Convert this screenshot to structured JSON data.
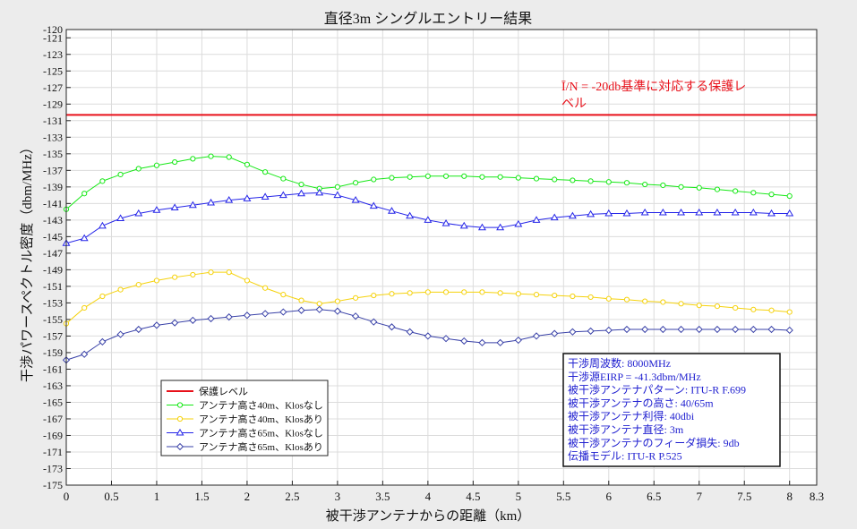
{
  "chart_data": {
    "type": "line",
    "title": "直径3m シングルエントリー結果",
    "xlabel": "被干渉アンテナからの距離（km）",
    "ylabel": "干渉パワースペクトル密度（dbm/MHz）",
    "xlim": [
      0,
      8.3
    ],
    "ylim": [
      -175,
      -120
    ],
    "grid": true,
    "x_ticks": [
      0,
      0.5,
      1,
      1.5,
      2,
      2.5,
      3,
      3.5,
      4,
      4.5,
      5,
      5.5,
      6,
      6.5,
      7,
      7.5,
      8,
      8.3
    ],
    "x_tick_labels": [
      "0",
      "0.5",
      "1",
      "1.5",
      "2",
      "2.5",
      "3",
      "3.5",
      "4",
      "4.5",
      "5",
      "5.5",
      "6",
      "6.5",
      "7",
      "7.5",
      "8",
      "8.3"
    ],
    "y_ticks": [
      -120,
      -121,
      -123,
      -125,
      -127,
      -129,
      -131,
      -133,
      -135,
      -137,
      -139,
      -141,
      -143,
      -145,
      -147,
      -149,
      -151,
      -153,
      -155,
      -157,
      -159,
      -161,
      -163,
      -165,
      -167,
      -169,
      -171,
      -173,
      -175
    ],
    "y_tick_labels": [
      "-120",
      "-121",
      "-123",
      "-125",
      "-127",
      "-129",
      "-131",
      "-133",
      "-135",
      "-137",
      "-139",
      "-141",
      "-143",
      "-145",
      "-147",
      "-149",
      "-151",
      "-153",
      "-155",
      "-157",
      "-159",
      "-161",
      "-163",
      "-165",
      "-167",
      "-169",
      "-171",
      "-173",
      "-175"
    ],
    "x": [
      0,
      0.2,
      0.4,
      0.6,
      0.8,
      1.0,
      1.2,
      1.4,
      1.6,
      1.8,
      2.0,
      2.2,
      2.4,
      2.6,
      2.8,
      3.0,
      3.2,
      3.4,
      3.6,
      3.8,
      4.0,
      4.2,
      4.4,
      4.6,
      4.8,
      5.0,
      5.2,
      5.4,
      5.6,
      5.8,
      6.0,
      6.2,
      6.4,
      6.6,
      6.8,
      7.0,
      7.2,
      7.4,
      7.6,
      7.8,
      8.0
    ],
    "series": [
      {
        "name": "保護レベル",
        "color": "#e8101a",
        "marker": "none",
        "x": [
          0,
          8.3
        ],
        "values": [
          -130.3,
          -130.3
        ]
      },
      {
        "name": "アンテナ高さ40m、Klosなし",
        "color": "#16e816",
        "marker": "circle",
        "values": [
          -141.7,
          -139.8,
          -138.3,
          -137.5,
          -136.8,
          -136.4,
          -136.0,
          -135.6,
          -135.3,
          -135.4,
          -136.3,
          -137.2,
          -138.0,
          -138.7,
          -139.2,
          -139.0,
          -138.5,
          -138.1,
          -137.9,
          -137.8,
          -137.7,
          -137.7,
          -137.7,
          -137.8,
          -137.8,
          -137.9,
          -138.0,
          -138.1,
          -138.2,
          -138.3,
          -138.4,
          -138.5,
          -138.7,
          -138.8,
          -139.0,
          -139.1,
          -139.3,
          -139.5,
          -139.7,
          -139.9,
          -140.1
        ]
      },
      {
        "name": "アンテナ高さ40m、Klosあり",
        "color": "#f5d20d",
        "marker": "circle",
        "values": [
          -155.5,
          -153.6,
          -152.2,
          -151.4,
          -150.8,
          -150.3,
          -149.9,
          -149.6,
          -149.3,
          -149.3,
          -150.3,
          -151.2,
          -152.0,
          -152.7,
          -153.1,
          -152.8,
          -152.4,
          -152.1,
          -151.9,
          -151.8,
          -151.7,
          -151.7,
          -151.7,
          -151.7,
          -151.8,
          -151.9,
          -152.0,
          -152.1,
          -152.2,
          -152.3,
          -152.5,
          -152.6,
          -152.8,
          -152.9,
          -153.1,
          -153.3,
          -153.4,
          -153.6,
          -153.8,
          -153.9,
          -154.1
        ]
      },
      {
        "name": "アンテナ高さ65m、Klosなし",
        "color": "#2525e8",
        "marker": "triangle",
        "values": [
          -145.8,
          -145.2,
          -143.7,
          -142.8,
          -142.2,
          -141.8,
          -141.5,
          -141.2,
          -140.9,
          -140.6,
          -140.4,
          -140.2,
          -140.0,
          -139.8,
          -139.7,
          -140.0,
          -140.6,
          -141.3,
          -141.9,
          -142.5,
          -143.0,
          -143.4,
          -143.7,
          -143.9,
          -143.9,
          -143.5,
          -143.0,
          -142.7,
          -142.5,
          -142.3,
          -142.2,
          -142.2,
          -142.1,
          -142.1,
          -142.1,
          -142.1,
          -142.1,
          -142.1,
          -142.1,
          -142.2,
          -142.2
        ]
      },
      {
        "name": "アンテナ高さ65m、Klosあり",
        "color": "#3a42a8",
        "marker": "diamond",
        "values": [
          -159.9,
          -159.2,
          -157.7,
          -156.8,
          -156.2,
          -155.7,
          -155.4,
          -155.1,
          -154.9,
          -154.7,
          -154.5,
          -154.3,
          -154.1,
          -153.9,
          -153.8,
          -154.0,
          -154.6,
          -155.3,
          -155.9,
          -156.5,
          -157.0,
          -157.3,
          -157.6,
          -157.8,
          -157.8,
          -157.5,
          -157.0,
          -156.7,
          -156.5,
          -156.4,
          -156.3,
          -156.2,
          -156.2,
          -156.2,
          -156.2,
          -156.2,
          -156.2,
          -156.2,
          -156.2,
          -156.2,
          -156.3
        ]
      }
    ],
    "annotation": {
      "text_lines": [
        "Ī/N = -20db基準に対応する保護レ",
        "ベル"
      ],
      "color": "#e8101a"
    },
    "legend": {
      "placement": "bottom-left"
    },
    "info_box": {
      "placement": "bottom-right",
      "color": "#2020d0",
      "lines": [
        "干渉周波数: 8000MHz",
        "干渉源EIRP = -41.3dbm/MHz",
        "被干渉アンテナパターン: ITU-R F.699",
        "被干渉アンテナの高さ: 40/65m",
        "被干渉アンテナ利得: 40dbi",
        "被干渉アンテナ直径: 3m",
        "被干渉アンテナのフィーダ損失: 9db",
        "伝播モデル: ITU-R P.525"
      ]
    }
  }
}
